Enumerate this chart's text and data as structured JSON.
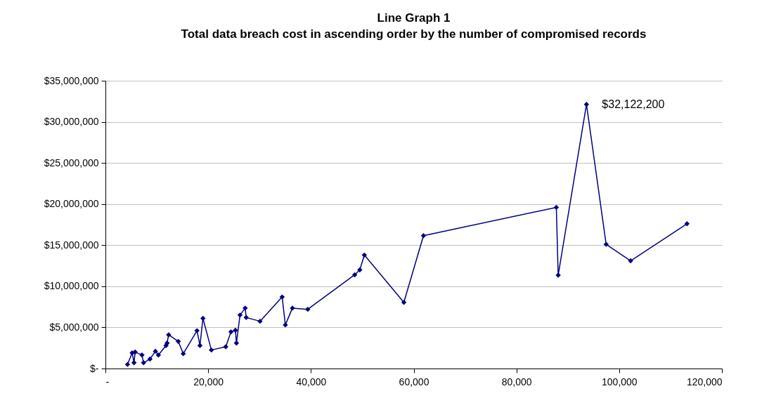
{
  "chart_data": {
    "type": "line",
    "title": "Line Graph 1",
    "subtitle": "Total data breach cost in ascending order by the number of compromised records",
    "x": [
      4300,
      5200,
      5560,
      5780,
      7110,
      7420,
      8670,
      9730,
      10310,
      11800,
      12000,
      12300,
      14180,
      15150,
      17820,
      18400,
      18980,
      20620,
      23420,
      24440,
      25300,
      25500,
      26200,
      27200,
      27400,
      30090,
      34400,
      35020,
      36400,
      39380,
      48530,
      49510,
      50400,
      58090,
      61910,
      87770,
      88130,
      93640,
      97470,
      102230,
      113200
    ],
    "series": [
      {
        "color": "#000080",
        "values": [
          500000,
          1900000,
          700000,
          2000000,
          1650000,
          700000,
          1150000,
          2100000,
          1650000,
          2800000,
          3100000,
          4100000,
          3300000,
          1800000,
          4600000,
          2800000,
          6100000,
          2250000,
          2650000,
          4450000,
          4650000,
          3100000,
          6500000,
          7350000,
          6200000,
          5750000,
          8700000,
          5300000,
          7350000,
          7200000,
          11400000,
          12000000,
          13800000,
          8050000,
          16150000,
          19600000,
          11350000,
          32122200,
          15100000,
          13100000,
          17600000
        ]
      }
    ],
    "xlim": [
      0,
      120000
    ],
    "xticks": [
      {
        "value": 0,
        "label": "-"
      },
      {
        "value": 20000,
        "label": "20,000"
      },
      {
        "value": 40000,
        "label": "40,000"
      },
      {
        "value": 60000,
        "label": "60,000"
      },
      {
        "value": 80000,
        "label": "80,000"
      },
      {
        "value": 100000,
        "label": "100,000"
      },
      {
        "value": 120000,
        "label": "120,000"
      }
    ],
    "ylim": [
      0,
      35000000
    ],
    "yticks": [
      {
        "value": 0,
        "label": "$-"
      },
      {
        "value": 5000000,
        "label": "$5,000,000"
      },
      {
        "value": 10000000,
        "label": "$10,000,000"
      },
      {
        "value": 15000000,
        "label": "$15,000,000"
      },
      {
        "value": 20000000,
        "label": "$20,000,000"
      },
      {
        "value": 25000000,
        "label": "$25,000,000"
      },
      {
        "value": 30000000,
        "label": "$30,000,000"
      },
      {
        "value": 35000000,
        "label": "$35,000,000"
      }
    ],
    "grid": "y",
    "marker": "diamond",
    "line_style": "solid",
    "annotations": [
      {
        "text": "$32,122,200",
        "x": 93640,
        "y": 32122200
      }
    ]
  }
}
